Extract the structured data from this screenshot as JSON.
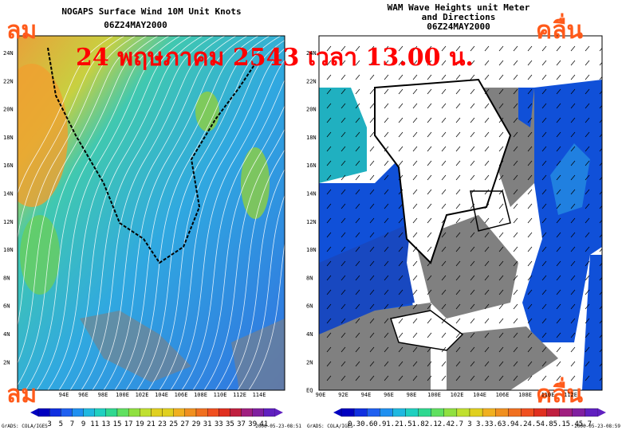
{
  "banner": "24 พฤษภาคม  2543 เวลา 13.00 น.",
  "left_panel": {
    "title": "NOGAPS Surface Wind 10M Unit Knots",
    "time": "06Z24MAY2000",
    "label_top": "ลม",
    "label_bottom": "ลม",
    "lat_labels": [
      "24N",
      "22N",
      "20N",
      "18N",
      "16N",
      "14N",
      "12N",
      "10N",
      "8N",
      "6N",
      "4N",
      "2N"
    ],
    "lon_labels": [
      "94E",
      "96E",
      "98E",
      "100E",
      "102E",
      "104E",
      "106E",
      "108E",
      "110E",
      "112E",
      "114E"
    ],
    "colorbar_labels": [
      "3",
      "5",
      "7",
      "9",
      "11",
      "13",
      "15",
      "17",
      "19",
      "21",
      "23",
      "25",
      "27",
      "29",
      "31",
      "33",
      "35",
      "37",
      "39",
      "41"
    ],
    "footer_left": "GrADS: COLA/IGES",
    "footer_right": "2000-05-23-08:51"
  },
  "right_panel": {
    "title_lines": [
      "WAM Wave Heights unit Meter",
      "and Directions"
    ],
    "time": "06Z24MAY2000",
    "label_top": "คลื่น",
    "label_bottom": "คลื่น",
    "lat_labels": [
      "24N",
      "22N",
      "20N",
      "18N",
      "16N",
      "14N",
      "12N",
      "10N",
      "8N",
      "6N",
      "4N",
      "2N",
      "EQ"
    ],
    "lon_labels": [
      "90E",
      "92E",
      "94E",
      "96E",
      "98E",
      "100E",
      "102E",
      "104E",
      "106E",
      "108E",
      "110E",
      "112E"
    ],
    "colorbar_labels": [
      "0.3",
      "0.6",
      "0.9",
      "1.2",
      "1.5",
      "1.8",
      "2.1",
      "2.4",
      "2.7",
      "3",
      "3.3",
      "3.6",
      "3.9",
      "4.2",
      "4.5",
      "4.8",
      "5.1",
      "5.4",
      "5.7"
    ],
    "footer_left": "GrADS: COLA/IGES",
    "footer_right": "2000-05-23-08:59"
  }
}
